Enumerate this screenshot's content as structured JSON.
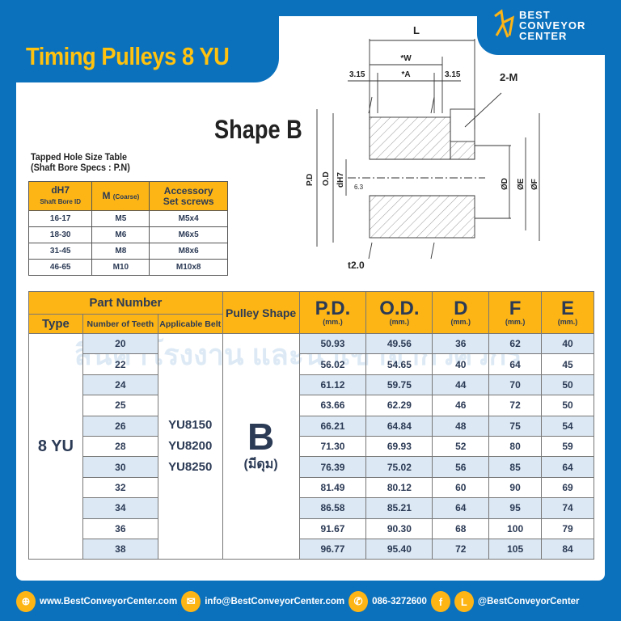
{
  "title": "Timing Pulleys 8 YU",
  "logo": {
    "line1": "BEST",
    "line2": "CONVEYOR",
    "line3": "CENTER"
  },
  "shape_title": "Shape B",
  "diagram": {
    "L": "L",
    "W": "*W",
    "A": "*A",
    "left_gap": "3.15",
    "right_gap": "3.15",
    "M": "2-M",
    "PD": "P.D",
    "OD": "O.D",
    "dH7": "dH7",
    "roughness": "6.3",
    "D": "ØD",
    "E": "ØE",
    "F": "ØF",
    "t": "t2.0"
  },
  "small_table": {
    "caption1": "Tapped Hole Size Table",
    "caption2": "(Shaft Bore Specs : P.N)",
    "headers": {
      "c1": "dH7",
      "c1_sub": "Shaft Bore ID",
      "c2": "M",
      "c2_sub": "(Coarse)",
      "c3a": "Accessory",
      "c3b": "Set screws"
    },
    "rows": [
      [
        "16-17",
        "M5",
        "M5x4"
      ],
      [
        "18-30",
        "M6",
        "M6x5"
      ],
      [
        "31-45",
        "M8",
        "M8x6"
      ],
      [
        "46-65",
        "M10",
        "M10x8"
      ]
    ]
  },
  "main_table": {
    "headers": {
      "part_number": "Part Number",
      "type": "Type",
      "teeth": "Number of Teeth",
      "belt": "Applicable Belt",
      "shape": "Pulley Shape",
      "pd": "P.D.",
      "od": "O.D.",
      "d": "D",
      "f": "F",
      "e": "E",
      "unit": "(mm.)"
    },
    "type": "8 YU",
    "belts": [
      "YU8150",
      "YU8200",
      "YU8250"
    ],
    "shape": "B",
    "shape_sub": "(มีดุม)",
    "rows": [
      [
        "20",
        "50.93",
        "49.56",
        "36",
        "62",
        "40"
      ],
      [
        "22",
        "56.02",
        "54.65",
        "40",
        "64",
        "45"
      ],
      [
        "24",
        "61.12",
        "59.75",
        "44",
        "70",
        "50"
      ],
      [
        "25",
        "63.66",
        "62.29",
        "46",
        "72",
        "50"
      ],
      [
        "26",
        "66.21",
        "64.84",
        "48",
        "75",
        "54"
      ],
      [
        "28",
        "71.30",
        "69.93",
        "52",
        "80",
        "59"
      ],
      [
        "30",
        "76.39",
        "75.02",
        "56",
        "85",
        "64"
      ],
      [
        "32",
        "81.49",
        "80.12",
        "60",
        "90",
        "69"
      ],
      [
        "34",
        "86.58",
        "85.21",
        "64",
        "95",
        "74"
      ],
      [
        "36",
        "91.67",
        "90.30",
        "68",
        "100",
        "79"
      ],
      [
        "38",
        "96.77",
        "95.40",
        "72",
        "105",
        "84"
      ]
    ]
  },
  "watermark": "สินค้าโรงงาน และนำเข้าจากวิศวกร",
  "footer": {
    "web": "www.BestConveyorCenter.com",
    "email": "info@BestConveyorCenter.com",
    "phone": "086-3272600",
    "social": "@BestConveyorCenter",
    "fb": "f",
    "line": "L"
  },
  "colors": {
    "brand_blue": "#0b71bd",
    "accent_yellow": "#fdb515",
    "row_shade": "#dce8f3"
  }
}
